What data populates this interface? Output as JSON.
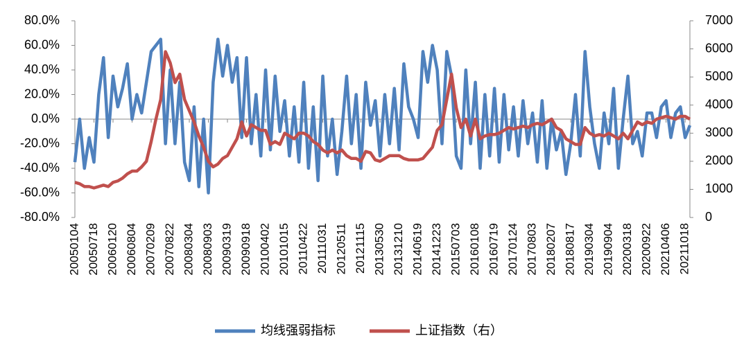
{
  "chart_data": {
    "type": "line",
    "categories": [
      "20050104",
      null,
      null,
      null,
      "20050718",
      null,
      null,
      null,
      "20060120",
      null,
      null,
      null,
      "20060804",
      null,
      null,
      null,
      "20070209",
      null,
      null,
      null,
      "20070822",
      null,
      null,
      null,
      "20080304",
      null,
      null,
      null,
      "20080903",
      null,
      null,
      null,
      "20090319",
      null,
      null,
      null,
      "20090918",
      null,
      null,
      null,
      "20100402",
      null,
      null,
      null,
      "20101015",
      null,
      null,
      null,
      "20110422",
      null,
      null,
      null,
      "20111031",
      null,
      null,
      null,
      "20120511",
      null,
      null,
      null,
      "20121115",
      null,
      null,
      null,
      "20130530",
      null,
      null,
      null,
      "20131210",
      null,
      null,
      null,
      "20140619",
      null,
      null,
      null,
      "20141223",
      null,
      null,
      null,
      "20150703",
      null,
      null,
      null,
      "20160108",
      null,
      null,
      null,
      "20160719",
      null,
      null,
      null,
      "20170124",
      null,
      null,
      null,
      "20170803",
      null,
      null,
      null,
      "20180207",
      null,
      null,
      null,
      "20180817",
      null,
      null,
      null,
      "20190304",
      null,
      null,
      null,
      "20190904",
      null,
      null,
      null,
      "20200318",
      null,
      null,
      null,
      "20200922",
      null,
      null,
      null,
      "20210406",
      null,
      null,
      null,
      "20211018",
      null
    ],
    "series": [
      {
        "name": "均线强弱指标",
        "color": "#4f81bd",
        "axis": "y",
        "values": [
          -35,
          0,
          -40,
          -15,
          -35,
          20,
          50,
          -15,
          35,
          10,
          25,
          45,
          0,
          20,
          5,
          30,
          55,
          60,
          65,
          -20,
          40,
          -20,
          30,
          -35,
          -50,
          10,
          -55,
          0,
          -60,
          30,
          65,
          35,
          60,
          30,
          50,
          -15,
          50,
          -20,
          20,
          -30,
          40,
          -25,
          35,
          -10,
          15,
          -30,
          10,
          -35,
          30,
          -40,
          10,
          -50,
          35,
          -30,
          0,
          -45,
          -10,
          35,
          -20,
          20,
          -40,
          30,
          -5,
          15,
          -30,
          20,
          -20,
          25,
          -25,
          45,
          10,
          0,
          -15,
          55,
          30,
          60,
          40,
          -20,
          55,
          35,
          -30,
          -40,
          40,
          -20,
          30,
          -40,
          20,
          -30,
          25,
          -35,
          20,
          -25,
          10,
          -30,
          15,
          -20,
          5,
          -35,
          15,
          -40,
          0,
          -25,
          -10,
          -45,
          -20,
          20,
          -30,
          55,
          10,
          -20,
          -40,
          5,
          -20,
          25,
          -40,
          0,
          35,
          -20,
          -10,
          -30,
          5,
          5,
          -15,
          10,
          15,
          -15,
          5,
          10,
          -15,
          -5
        ]
      },
      {
        "name": "上证指数（右）",
        "color": "#c0504d",
        "axis": "y2",
        "values": [
          1250,
          1200,
          1100,
          1100,
          1050,
          1100,
          1150,
          1100,
          1250,
          1300,
          1400,
          1550,
          1650,
          1650,
          1800,
          2000,
          2700,
          3500,
          4200,
          5900,
          5500,
          4800,
          5100,
          4200,
          3800,
          3400,
          2900,
          2500,
          2000,
          1800,
          1900,
          2100,
          2200,
          2500,
          2800,
          3400,
          2900,
          3300,
          3200,
          3100,
          3100,
          2600,
          2700,
          2600,
          3000,
          2900,
          2800,
          3000,
          3000,
          2900,
          2700,
          2600,
          2400,
          2300,
          2400,
          2300,
          2400,
          2200,
          2100,
          2100,
          2000,
          2350,
          2300,
          2050,
          2000,
          2100,
          2200,
          2200,
          2200,
          2100,
          2050,
          2050,
          2050,
          2100,
          2300,
          2500,
          3100,
          3300,
          4200,
          5100,
          3900,
          3200,
          3500,
          2900,
          3500,
          2800,
          2900,
          2950,
          2950,
          3000,
          3100,
          3200,
          3150,
          3200,
          3250,
          3200,
          3300,
          3350,
          3300,
          3400,
          3500,
          3200,
          3100,
          2800,
          2700,
          2600,
          2600,
          3200,
          3000,
          2900,
          2950,
          2900,
          3000,
          2900,
          2800,
          3000,
          2800,
          3100,
          3400,
          3300,
          3400,
          3350,
          3500,
          3550,
          3600,
          3550,
          3500,
          3600,
          3600,
          3500
        ]
      }
    ],
    "ylim": [
      -80,
      80
    ],
    "yticks": [
      {
        "value": -80,
        "label": "-80.0%"
      },
      {
        "value": -60,
        "label": "-60.0%"
      },
      {
        "value": -40,
        "label": "-40.0%"
      },
      {
        "value": -20,
        "label": "-20.0%"
      },
      {
        "value": 0,
        "label": "0.0%"
      },
      {
        "value": 20,
        "label": "20.0%"
      },
      {
        "value": 40,
        "label": "40.0%"
      },
      {
        "value": 60,
        "label": "60.0%"
      },
      {
        "value": 80,
        "label": "80.0%"
      }
    ],
    "y2lim": [
      0,
      7000
    ],
    "y2ticks": [
      0,
      1000,
      2000,
      3000,
      4000,
      5000,
      6000,
      7000
    ],
    "legend": "bottom"
  }
}
